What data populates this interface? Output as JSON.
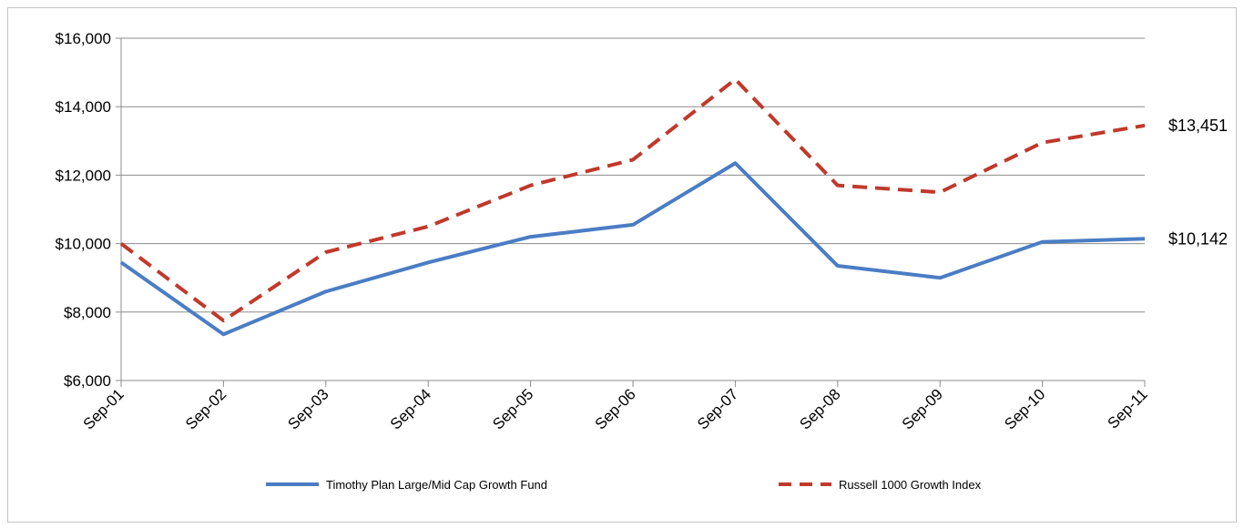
{
  "chart_data": {
    "type": "line",
    "categories": [
      "Sep-01",
      "Sep-02",
      "Sep-03",
      "Sep-04",
      "Sep-05",
      "Sep-06",
      "Sep-07",
      "Sep-08",
      "Sep-09",
      "Sep-10",
      "Sep-11"
    ],
    "series": [
      {
        "name": "Timothy Plan Large/Mid Cap Growth Fund",
        "color": "#4a7dc4",
        "style": "solid",
        "values": [
          9450,
          7350,
          8600,
          9450,
          10200,
          10550,
          12350,
          9350,
          9000,
          10050,
          10142
        ],
        "end_label": "$10,142"
      },
      {
        "name": "Russell 1000 Growth Index",
        "color": "#c0392b",
        "style": "dashed",
        "values": [
          10000,
          7750,
          9750,
          10500,
          11700,
          12450,
          14800,
          11700,
          11500,
          12950,
          13451
        ],
        "end_label": "$13,451"
      }
    ],
    "ylim": [
      6000,
      16000
    ],
    "yticks": [
      6000,
      8000,
      10000,
      12000,
      14000,
      16000
    ],
    "ytick_labels": [
      "$6,000",
      "$8,000",
      "$10,000",
      "$12,000",
      "$14,000",
      "$16,000"
    ],
    "grid": true,
    "legend_position": "bottom"
  }
}
